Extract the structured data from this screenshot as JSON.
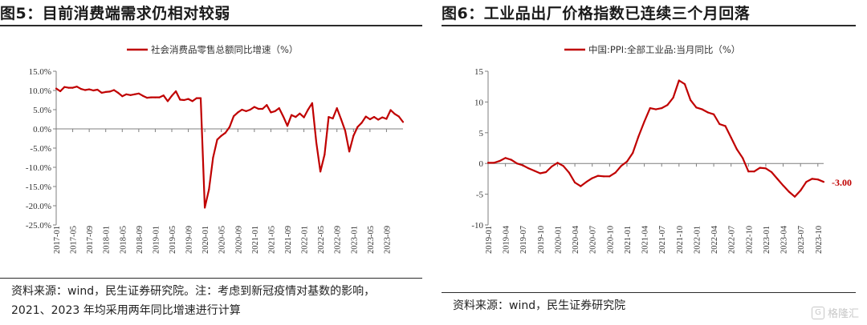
{
  "left": {
    "title": "图5：目前消费端需求仍相对较弱",
    "source_line1": "资料来源：wind，民生证券研究院。注：考虑到新冠疫情对基数的影响，",
    "source_line2": "2021、2023 年均采用两年同比增速进行计算"
  },
  "right": {
    "title": "图6：工业品出厂价格指数已连续三个月回落",
    "source_line1": "资料来源：wind，民生证券研究院",
    "end_label": "-3.00"
  },
  "watermark": {
    "text": "格隆汇",
    "icon": "g-logo-icon"
  },
  "colors": {
    "series": "#c00000",
    "axis": "#7f7f7f"
  },
  "chart_data": [
    {
      "type": "line",
      "legend": "社会消费品零售总额同比增速（%）",
      "ylim": [
        -25,
        15
      ],
      "yticks": [
        -25,
        -20,
        -15,
        -10,
        -5,
        0,
        5,
        10,
        15
      ],
      "ytick_labels": [
        "-25.0%",
        "-20.0%",
        "-15.0%",
        "-10.0%",
        "-5.0%",
        "0.0%",
        "5.0%",
        "10.0%",
        "15.0%"
      ],
      "xtick_labels": [
        "2017-01",
        "2017-05",
        "2017-09",
        "2018-01",
        "2018-05",
        "2018-09",
        "2019-01",
        "2019-05",
        "2019-09",
        "2020-01",
        "2020-05",
        "2020-09",
        "2021-01",
        "2021-05",
        "2021-09",
        "2022-01",
        "2022-05",
        "2022-09",
        "2023-01",
        "2023-05",
        "2023-09"
      ],
      "x_start": "2017-01",
      "series": [
        {
          "name": "社会消费品零售总额同比增速（%）",
          "values": [
            10.5,
            9.8,
            10.9,
            10.7,
            10.7,
            11.0,
            10.4,
            10.1,
            10.3,
            10.0,
            10.2,
            9.4,
            9.6,
            9.7,
            10.1,
            9.4,
            8.5,
            9.0,
            8.8,
            9.0,
            9.2,
            8.6,
            8.1,
            8.2,
            8.2,
            8.2,
            8.7,
            7.2,
            8.6,
            9.8,
            7.6,
            7.5,
            7.8,
            7.2,
            8.0,
            8.0,
            -20.5,
            -15.8,
            -7.5,
            -2.8,
            -1.8,
            -1.0,
            0.5,
            3.3,
            4.3,
            5.0,
            4.6,
            5.0,
            5.7,
            5.2,
            5.2,
            6.2,
            4.3,
            4.6,
            5.4,
            3.2,
            0.8,
            3.6,
            3.1,
            4.0,
            3.0,
            5.0,
            6.7,
            -3.5,
            -11.1,
            -6.7,
            3.1,
            2.7,
            5.4,
            2.5,
            -0.5,
            -5.9,
            -1.8,
            0.5,
            1.6,
            3.2,
            2.5,
            3.1,
            2.4,
            3.0,
            2.6,
            4.9,
            3.9,
            3.2,
            1.8
          ]
        }
      ]
    },
    {
      "type": "line",
      "legend": "中国:PPI:全部工业品:当月同比（%）",
      "ylim": [
        -10,
        15
      ],
      "yticks": [
        -10,
        -5,
        0,
        5,
        10,
        15
      ],
      "ytick_labels": [
        "-10",
        "-5",
        "0",
        "5",
        "10",
        "15"
      ],
      "xtick_labels": [
        "2019-01",
        "2019-04",
        "2019-07",
        "2019-10",
        "2020-01",
        "2020-04",
        "2020-07",
        "2020-10",
        "2021-01",
        "2021-04",
        "2021-07",
        "2021-10",
        "2022-01",
        "2022-04",
        "2022-07",
        "2022-10",
        "2023-01",
        "2023-04",
        "2023-07",
        "2023-10"
      ],
      "x_start": "2019-01",
      "series": [
        {
          "name": "中国:PPI:全部工业品:当月同比（%）",
          "values": [
            0.1,
            0.1,
            0.4,
            0.9,
            0.6,
            0.0,
            -0.3,
            -0.8,
            -1.2,
            -1.6,
            -1.4,
            -0.5,
            0.1,
            -0.4,
            -1.5,
            -3.1,
            -3.7,
            -3.0,
            -2.4,
            -2.0,
            -2.1,
            -2.1,
            -1.5,
            -0.4,
            0.3,
            1.7,
            4.4,
            6.8,
            9.0,
            8.8,
            9.0,
            9.5,
            10.7,
            13.5,
            12.9,
            10.3,
            9.1,
            8.8,
            8.3,
            8.0,
            6.4,
            6.1,
            4.2,
            2.3,
            0.9,
            -1.3,
            -1.3,
            -0.7,
            -0.8,
            -1.4,
            -2.5,
            -3.6,
            -4.6,
            -5.4,
            -4.4,
            -3.0,
            -2.5,
            -2.6,
            -3.0
          ]
        }
      ]
    }
  ]
}
